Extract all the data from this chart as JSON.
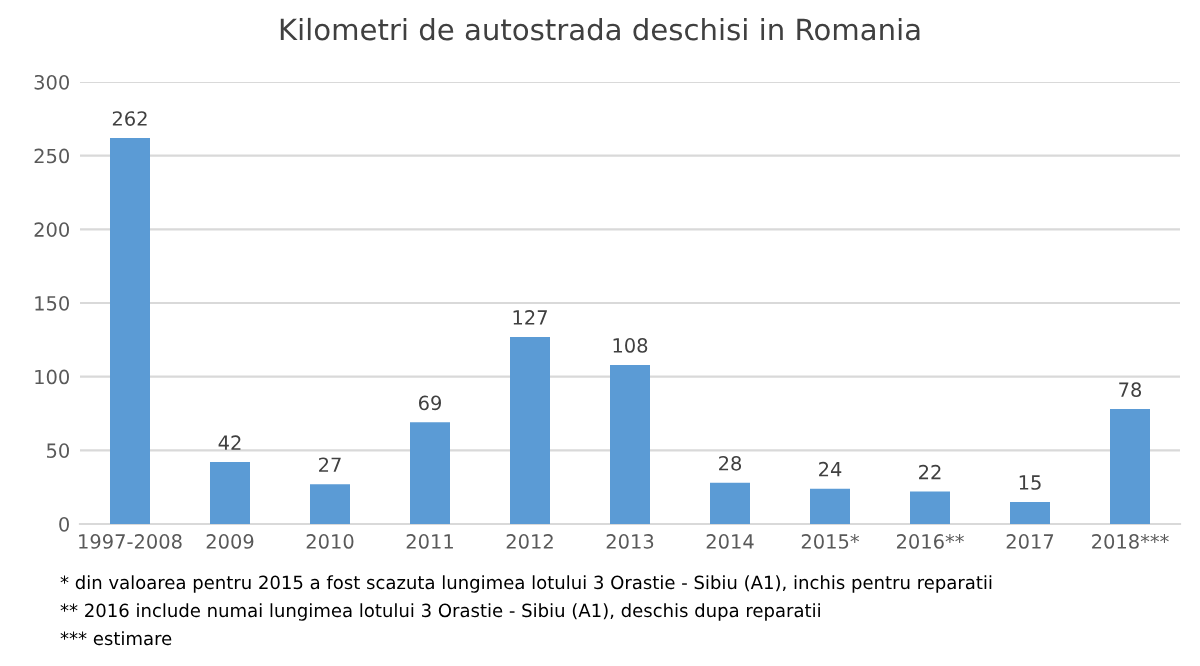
{
  "chart_data": {
    "type": "bar",
    "title": "Kilometri de autostrada deschisi in Romania",
    "categories": [
      "1997-2008",
      "2009",
      "2010",
      "2011",
      "2012",
      "2013",
      "2014",
      "2015*",
      "2016**",
      "2017",
      "2018***"
    ],
    "values": [
      262,
      42,
      27,
      69,
      127,
      108,
      28,
      24,
      22,
      15,
      78
    ],
    "color": "#5b9bd5",
    "ylim": [
      0,
      300
    ],
    "yticks": [
      0,
      50,
      100,
      150,
      200,
      250,
      300
    ],
    "grid": "y",
    "data_labels": true,
    "annotations": [
      "* din valoarea pentru 2015 a fost scazuta lungimea lotului 3 Orastie - Sibiu (A1), inchis pentru reparatii",
      "** 2016 include numai lungimea lotului 3 Orastie - Sibiu (A1), deschis dupa reparatii",
      "*** estimare"
    ]
  }
}
